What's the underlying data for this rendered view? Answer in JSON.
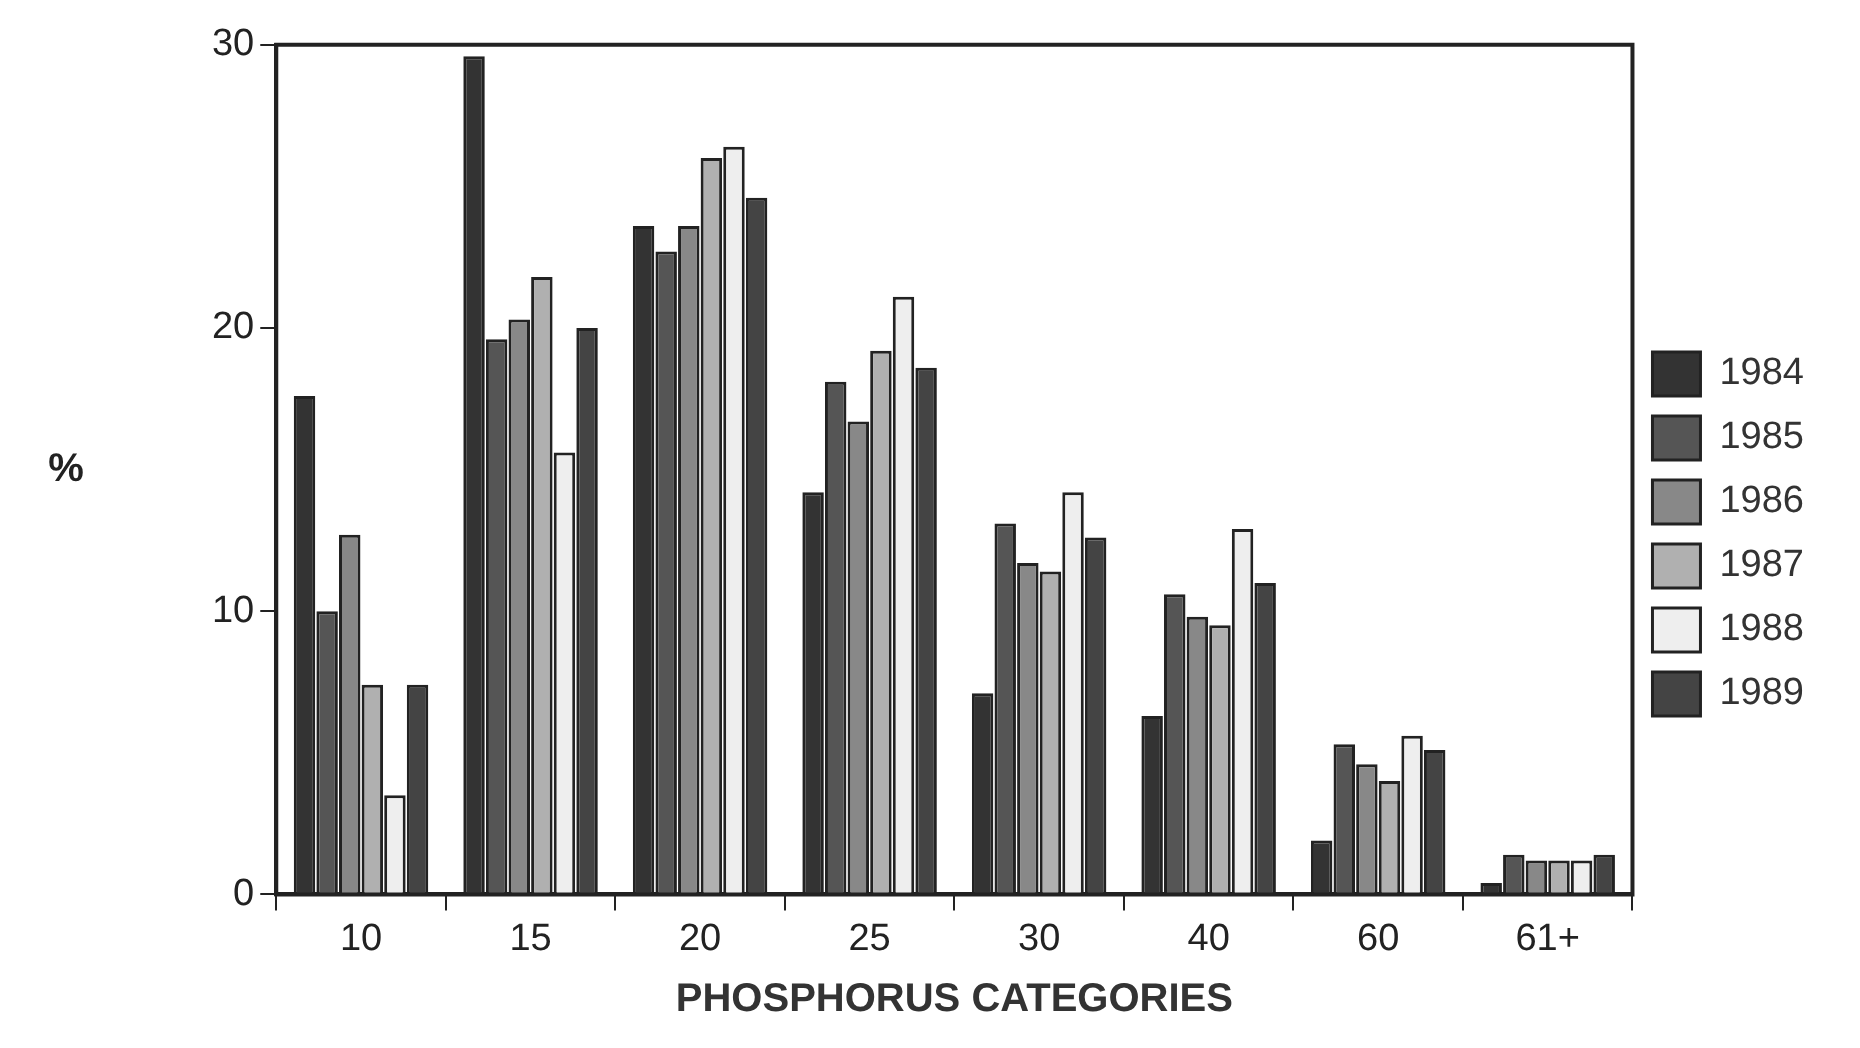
{
  "chart_data": {
    "type": "bar",
    "xlabel": "PHOSPHORUS CATEGORIES",
    "ylabel": "%",
    "categories": [
      "10",
      "15",
      "20",
      "25",
      "30",
      "40",
      "60",
      "61+"
    ],
    "series": [
      {
        "name": "1984",
        "color": "#333333",
        "values": [
          17.6,
          29.6,
          23.6,
          14.2,
          7.1,
          6.3,
          1.9,
          0.4
        ]
      },
      {
        "name": "1985",
        "color": "#555555",
        "values": [
          10.0,
          19.6,
          22.7,
          18.1,
          13.1,
          10.6,
          5.3,
          1.4
        ]
      },
      {
        "name": "1986",
        "color": "#888888",
        "values": [
          12.7,
          20.3,
          23.6,
          16.7,
          11.7,
          9.8,
          4.6,
          1.2
        ]
      },
      {
        "name": "1987",
        "color": "#b0b0b0",
        "values": [
          7.4,
          21.8,
          26.0,
          19.2,
          11.4,
          9.5,
          4.0,
          1.2
        ]
      },
      {
        "name": "1988",
        "color": "#eeeeee",
        "values": [
          3.5,
          15.6,
          26.4,
          21.1,
          14.2,
          12.9,
          5.6,
          1.2
        ]
      },
      {
        "name": "1989",
        "color": "#444444",
        "values": [
          7.4,
          20.0,
          24.6,
          18.6,
          12.6,
          11.0,
          5.1,
          1.4
        ]
      }
    ],
    "ylim": [
      0,
      30
    ],
    "yticks": [
      0,
      10,
      20,
      30
    ],
    "grid": false,
    "legend": "right"
  }
}
